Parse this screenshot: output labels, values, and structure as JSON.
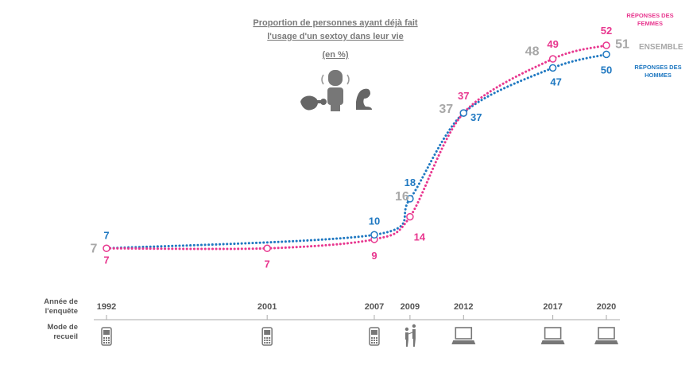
{
  "chart_data": {
    "type": "line",
    "title_lines": [
      "Proportion de personnes ayant déjà fait",
      "l'usage d'un sextoy dans leur vie"
    ],
    "subtitle": "(en %)",
    "x": [
      1992,
      2001,
      2007,
      2009,
      2012,
      2017,
      2020
    ],
    "x_tick_labels": [
      "1992",
      "2001",
      "2007",
      "2009",
      "2012",
      "2017",
      "2020"
    ],
    "ylim": [
      0,
      55
    ],
    "series": [
      {
        "name_lines": [
          "RÉPONSES DES",
          "FEMMES"
        ],
        "color": "#e8378f",
        "values": [
          7,
          7,
          9,
          14,
          37,
          49,
          52
        ]
      },
      {
        "name_lines": [
          "RÉPONSES DES",
          "HOMMES"
        ],
        "color": "#1f78c1",
        "values": [
          7,
          null,
          10,
          18,
          37,
          47,
          50
        ]
      },
      {
        "name_lines": [
          "ENSEMBLE"
        ],
        "color": "#a8a8a8",
        "values": [
          7,
          null,
          null,
          16,
          37,
          48,
          51
        ]
      }
    ],
    "rows": {
      "year_label_lines": [
        "Année de",
        "l'enquête"
      ],
      "mode_label_lines": [
        "Mode de",
        "recueil"
      ]
    },
    "collection_modes": [
      "phone",
      "phone",
      "phone",
      "face-to-face",
      "laptop",
      "laptop",
      "laptop"
    ],
    "header_icons": [
      "plug-icon",
      "hand-icon",
      "flexed-arm-icon"
    ]
  }
}
